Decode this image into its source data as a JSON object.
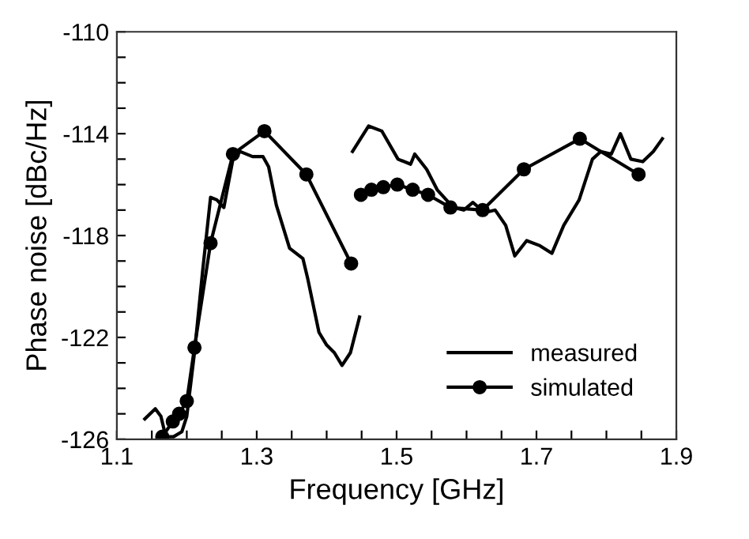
{
  "chart_data": {
    "type": "line",
    "xlabel": "Frequency [GHz]",
    "ylabel": "Phase noise [dBc/Hz]",
    "xlim": [
      1.1,
      1.9
    ],
    "ylim": [
      -126,
      -110
    ],
    "xticks": [
      1.1,
      {
        "value": 1.15,
        "label": null
      },
      {
        "value": 1.2,
        "label": null
      },
      {
        "value": 1.25,
        "label": null
      },
      1.3,
      {
        "value": 1.35,
        "label": null
      },
      {
        "value": 1.4,
        "label": null
      },
      {
        "value": 1.45,
        "label": null
      },
      1.5,
      {
        "value": 1.55,
        "label": null
      },
      {
        "value": 1.6,
        "label": null
      },
      {
        "value": 1.65,
        "label": null
      },
      1.7,
      {
        "value": 1.75,
        "label": null
      },
      {
        "value": 1.8,
        "label": null
      },
      {
        "value": 1.85,
        "label": null
      },
      1.9
    ],
    "yticks": [
      -126,
      {
        "value": -125,
        "label": null
      },
      {
        "value": -124,
        "label": null
      },
      {
        "value": -123,
        "label": null
      },
      -122,
      {
        "value": -121,
        "label": null
      },
      {
        "value": -120,
        "label": null
      },
      {
        "value": -119,
        "label": null
      },
      -118,
      {
        "value": -117,
        "label": null
      },
      {
        "value": -116,
        "label": null
      },
      {
        "value": -115,
        "label": null
      },
      -114,
      {
        "value": -113,
        "label": null
      },
      {
        "value": -112,
        "label": null
      },
      {
        "value": -111,
        "label": null
      },
      -110
    ],
    "grid": false,
    "legend": "bottom right",
    "series": [
      {
        "name": "measured",
        "color": "#000000",
        "marker": "none",
        "x": [
          1.14,
          1.155,
          1.163,
          1.17,
          1.181,
          1.193,
          1.2,
          1.211,
          1.223,
          1.234,
          1.243,
          1.253,
          1.266,
          1.276,
          1.294,
          1.309,
          1.317,
          1.328,
          1.347,
          1.366,
          1.373,
          1.389,
          1.4,
          1.411,
          1.422,
          1.434,
          1.447,
          1.442,
          1.437,
          1.46,
          1.479,
          1.502,
          1.52,
          1.526,
          1.543,
          1.558,
          1.581,
          1.596,
          1.609,
          1.626,
          1.641,
          1.656,
          1.669,
          1.686,
          1.705,
          1.722,
          1.739,
          1.761,
          1.78,
          1.792,
          1.807,
          1.82,
          1.835,
          1.852,
          1.867,
          1.88
        ],
        "values": [
          -125.2,
          -124.8,
          -125.1,
          -125.9,
          -125.9,
          -125.7,
          -125.1,
          -122.6,
          -119.3,
          -116.5,
          -116.6,
          -116.9,
          -115.0,
          -114.7,
          -114.9,
          -114.9,
          -115.3,
          -116.8,
          -118.5,
          -118.9,
          -119.7,
          -121.8,
          -122.3,
          -122.6,
          -123.1,
          -122.6,
          -121.2,
          null,
          -114.7,
          -113.7,
          -113.9,
          -115.0,
          -115.2,
          -114.8,
          -115.4,
          -116.2,
          -116.9,
          -117.0,
          -116.7,
          -117.1,
          -117.0,
          -117.6,
          -118.8,
          -118.2,
          -118.4,
          -118.7,
          -117.6,
          -116.6,
          -115.0,
          -114.7,
          -114.8,
          -114.0,
          -115.0,
          -115.1,
          -114.7,
          -114.2
        ]
      },
      {
        "name": "simulated",
        "color": "#000000",
        "marker": "circle",
        "x": [
          1.165,
          1.18,
          1.189,
          1.2,
          1.211,
          1.234,
          1.266,
          1.311,
          1.371,
          1.435,
          1.442,
          1.449,
          1.464,
          1.481,
          1.501,
          1.523,
          1.545,
          1.577,
          1.623,
          1.682,
          1.762,
          1.846
        ],
        "values": [
          -125.9,
          -125.3,
          -125.0,
          -124.5,
          -122.4,
          -118.3,
          -114.8,
          -113.9,
          -115.6,
          -119.1,
          null,
          -116.4,
          -116.2,
          -116.1,
          -116.0,
          -116.2,
          -116.4,
          -116.9,
          -117.0,
          -115.4,
          -114.2,
          -115.6
        ]
      }
    ]
  }
}
